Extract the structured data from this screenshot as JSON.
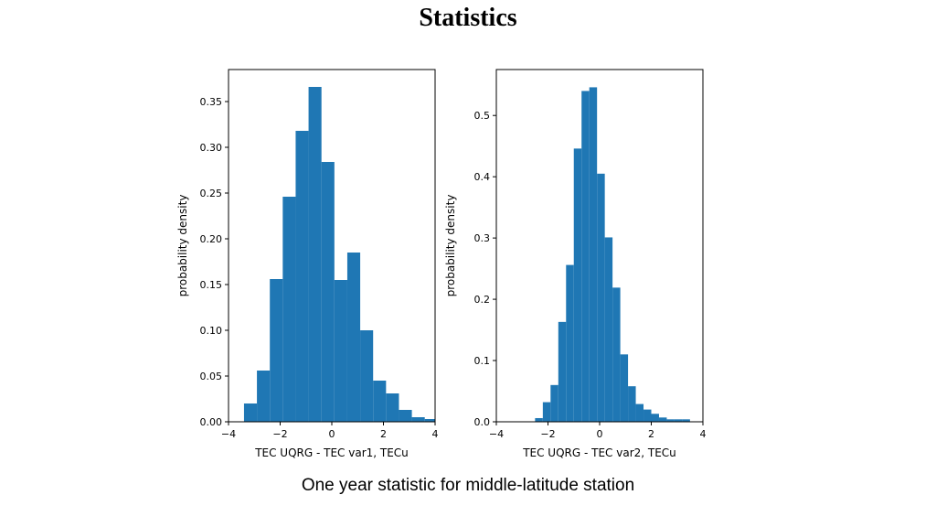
{
  "slide": {
    "title": "Statistics",
    "caption": "One year statistic for middle-latitude station"
  },
  "colors": {
    "bar": "#1f77b4",
    "axis": "#000000"
  },
  "chart_data": [
    {
      "type": "bar",
      "xlabel": "TEC UQRG - TEC var1, TECu",
      "ylabel": "probability density",
      "xlim": [
        -4,
        4
      ],
      "ylim": [
        0,
        0.385
      ],
      "xticks": [
        -4,
        -2,
        0,
        2,
        4
      ],
      "xtick_labels": [
        "−4",
        "−2",
        "0",
        "2",
        "4"
      ],
      "yticks": [
        0,
        0.05,
        0.1,
        0.15,
        0.2,
        0.25,
        0.3,
        0.35
      ],
      "ytick_labels": [
        "0.00",
        "0.05",
        "0.10",
        "0.15",
        "0.20",
        "0.25",
        "0.30",
        "0.35"
      ],
      "bin_edges": [
        -3.4,
        -2.9,
        -2.4,
        -1.9,
        -1.4,
        -0.9,
        -0.4,
        0.1,
        0.6,
        1.1,
        1.6,
        2.1,
        2.6,
        3.1,
        3.6,
        4.0
      ],
      "values": [
        0.02,
        0.056,
        0.156,
        0.246,
        0.318,
        0.366,
        0.284,
        0.155,
        0.185,
        0.1,
        0.045,
        0.031,
        0.013,
        0.005,
        0.003
      ]
    },
    {
      "type": "bar",
      "xlabel": "TEC UQRG - TEC var2, TECu",
      "ylabel": "probability density",
      "xlim": [
        -4,
        4
      ],
      "ylim": [
        0,
        0.575
      ],
      "xticks": [
        -4,
        -2,
        0,
        2,
        4
      ],
      "xtick_labels": [
        "−4",
        "−2",
        "0",
        "2",
        "4"
      ],
      "yticks": [
        0,
        0.1,
        0.2,
        0.3,
        0.4,
        0.5
      ],
      "ytick_labels": [
        "0.0",
        "0.1",
        "0.2",
        "0.3",
        "0.4",
        "0.5"
      ],
      "bin_edges": [
        -2.5,
        -2.2,
        -1.9,
        -1.6,
        -1.3,
        -1.0,
        -0.7,
        -0.4,
        -0.1,
        0.2,
        0.5,
        0.8,
        1.1,
        1.4,
        1.7,
        2.0,
        2.3,
        2.6,
        2.9,
        3.2,
        3.5
      ],
      "values": [
        0.006,
        0.032,
        0.06,
        0.163,
        0.256,
        0.446,
        0.54,
        0.546,
        0.405,
        0.301,
        0.219,
        0.11,
        0.058,
        0.029,
        0.02,
        0.013,
        0.007,
        0.004,
        0.004,
        0.004
      ]
    }
  ]
}
